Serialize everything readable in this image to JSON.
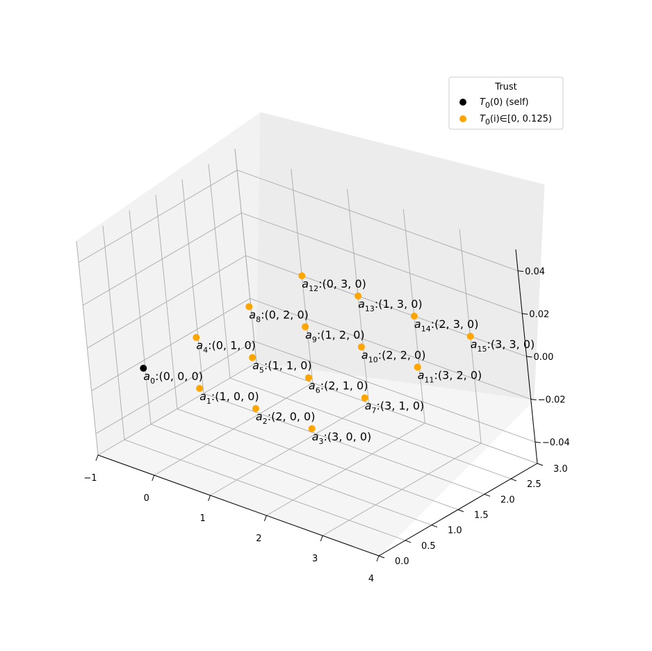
{
  "chart_data": {
    "type": "scatter",
    "title": "",
    "xlim": [
      -1,
      4
    ],
    "ylim": [
      0,
      3
    ],
    "zlim": [
      -0.05,
      0.05
    ],
    "x_ticks": [
      "−1",
      "0",
      "1",
      "2",
      "3",
      "4"
    ],
    "y_ticks": [
      "0.0",
      "0.5",
      "1.0",
      "1.5",
      "2.0",
      "2.5",
      "3.0"
    ],
    "z_ticks": [
      "−0.04",
      "−0.02",
      "0.00",
      "0.02",
      "0.04"
    ],
    "grid": true,
    "legend": {
      "title": "Trust",
      "placement": "top-right",
      "entries": [
        {
          "main": "T",
          "sub": "0",
          "rest": "(0) (self)",
          "color": "#000000"
        },
        {
          "main": "T",
          "sub": "0",
          "rest": "(i)∈[0, 0.125)",
          "color": "#FFA500"
        }
      ]
    },
    "points": [
      {
        "name": "a",
        "sub": "0",
        "coord": ":(0, 0, 0)",
        "x": 0,
        "y": 0,
        "z": 0,
        "color": "#000000"
      },
      {
        "name": "a",
        "sub": "1",
        "coord": ":(1, 0, 0)",
        "x": 1,
        "y": 0,
        "z": 0,
        "color": "#FFA500"
      },
      {
        "name": "a",
        "sub": "2",
        "coord": ":(2, 0, 0)",
        "x": 2,
        "y": 0,
        "z": 0,
        "color": "#FFA500"
      },
      {
        "name": "a",
        "sub": "3",
        "coord": ":(3, 0, 0)",
        "x": 3,
        "y": 0,
        "z": 0,
        "color": "#FFA500"
      },
      {
        "name": "a",
        "sub": "4",
        "coord": ":(0, 1, 0)",
        "x": 0,
        "y": 1,
        "z": 0,
        "color": "#FFA500"
      },
      {
        "name": "a",
        "sub": "5",
        "coord": ":(1, 1, 0)",
        "x": 1,
        "y": 1,
        "z": 0,
        "color": "#FFA500"
      },
      {
        "name": "a",
        "sub": "6",
        "coord": ":(2, 1, 0)",
        "x": 2,
        "y": 1,
        "z": 0,
        "color": "#FFA500"
      },
      {
        "name": "a",
        "sub": "7",
        "coord": ":(3, 1, 0)",
        "x": 3,
        "y": 1,
        "z": 0,
        "color": "#FFA500"
      },
      {
        "name": "a",
        "sub": "8",
        "coord": ":(0, 2, 0)",
        "x": 0,
        "y": 2,
        "z": 0,
        "color": "#FFA500"
      },
      {
        "name": "a",
        "sub": "9",
        "coord": ":(1, 2, 0)",
        "x": 1,
        "y": 2,
        "z": 0,
        "color": "#FFA500"
      },
      {
        "name": "a",
        "sub": "10",
        "coord": ":(2, 2, 0)",
        "x": 2,
        "y": 2,
        "z": 0,
        "color": "#FFA500"
      },
      {
        "name": "a",
        "sub": "11",
        "coord": ":(3, 2, 0)",
        "x": 3,
        "y": 2,
        "z": 0,
        "color": "#FFA500"
      },
      {
        "name": "a",
        "sub": "12",
        "coord": ":(0, 3, 0)",
        "x": 0,
        "y": 3,
        "z": 0,
        "color": "#FFA500"
      },
      {
        "name": "a",
        "sub": "13",
        "coord": ":(1, 3, 0)",
        "x": 1,
        "y": 3,
        "z": 0,
        "color": "#FFA500"
      },
      {
        "name": "a",
        "sub": "14",
        "coord": ":(2, 3, 0)",
        "x": 2,
        "y": 3,
        "z": 0,
        "color": "#FFA500"
      },
      {
        "name": "a",
        "sub": "15",
        "coord": ":(3, 3, 0)",
        "x": 3,
        "y": 3,
        "z": 0,
        "color": "#FFA500"
      }
    ]
  }
}
